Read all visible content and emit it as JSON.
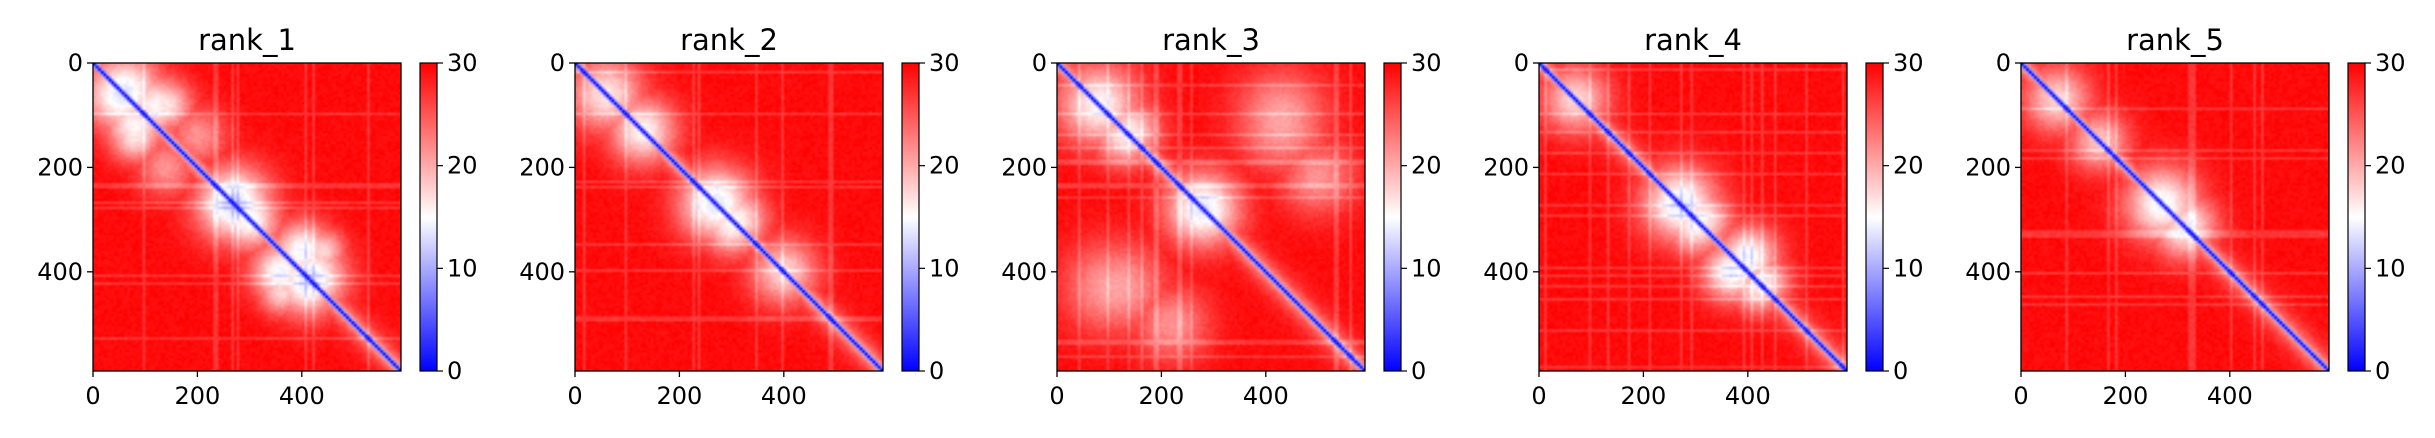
{
  "chart_data": [
    {
      "type": "heatmap",
      "title": "rank_1",
      "xlim": [
        0,
        590
      ],
      "ylim": [
        590,
        0
      ],
      "x_ticks": [
        0,
        200,
        400
      ],
      "y_ticks": [
        0,
        200,
        400
      ],
      "colorbar": {
        "range": [
          0,
          30
        ],
        "ticks": [
          0,
          10,
          20,
          30
        ]
      },
      "colormap": [
        "#0000ff",
        "#ffffff",
        "#ff0000"
      ],
      "blobs": [
        {
          "x": 60,
          "y": 55,
          "r": 50,
          "v": 14
        },
        {
          "x": 120,
          "y": 80,
          "r": 40,
          "v": 16
        },
        {
          "x": 80,
          "y": 140,
          "r": 35,
          "v": 17
        },
        {
          "x": 270,
          "y": 270,
          "r": 50,
          "v": 13
        },
        {
          "x": 300,
          "y": 300,
          "r": 40,
          "v": 15
        },
        {
          "x": 360,
          "y": 400,
          "r": 40,
          "v": 15
        },
        {
          "x": 420,
          "y": 410,
          "r": 45,
          "v": 14
        },
        {
          "x": 440,
          "y": 360,
          "r": 30,
          "v": 18
        },
        {
          "x": 200,
          "y": 140,
          "r": 40,
          "v": 22
        }
      ]
    },
    {
      "type": "heatmap",
      "title": "rank_2",
      "xlim": [
        0,
        590
      ],
      "ylim": [
        590,
        0
      ],
      "x_ticks": [
        0,
        200,
        400
      ],
      "y_ticks": [
        0,
        200,
        400
      ],
      "colorbar": {
        "range": [
          0,
          30
        ],
        "ticks": [
          0,
          10,
          20,
          30
        ]
      },
      "colormap": [
        "#0000ff",
        "#ffffff",
        "#ff0000"
      ],
      "blobs": [
        {
          "x": 60,
          "y": 60,
          "r": 50,
          "v": 17
        },
        {
          "x": 130,
          "y": 130,
          "r": 45,
          "v": 16
        },
        {
          "x": 270,
          "y": 270,
          "r": 50,
          "v": 14
        },
        {
          "x": 300,
          "y": 310,
          "r": 40,
          "v": 16
        },
        {
          "x": 400,
          "y": 400,
          "r": 45,
          "v": 18
        }
      ]
    },
    {
      "type": "heatmap",
      "title": "rank_3",
      "xlim": [
        0,
        590
      ],
      "ylim": [
        590,
        0
      ],
      "x_ticks": [
        0,
        200,
        400
      ],
      "y_ticks": [
        0,
        200,
        400
      ],
      "colorbar": {
        "range": [
          0,
          30
        ],
        "ticks": [
          0,
          10,
          20,
          30
        ]
      },
      "colormap": [
        "#0000ff",
        "#ffffff",
        "#ff0000"
      ],
      "blobs": [
        {
          "x": 80,
          "y": 80,
          "r": 55,
          "v": 16
        },
        {
          "x": 140,
          "y": 130,
          "r": 40,
          "v": 17
        },
        {
          "x": 280,
          "y": 280,
          "r": 50,
          "v": 14
        },
        {
          "x": 100,
          "y": 430,
          "r": 60,
          "v": 21
        },
        {
          "x": 430,
          "y": 120,
          "r": 60,
          "v": 21
        },
        {
          "x": 220,
          "y": 500,
          "r": 50,
          "v": 22
        },
        {
          "x": 500,
          "y": 220,
          "r": 50,
          "v": 22
        }
      ]
    },
    {
      "type": "heatmap",
      "title": "rank_4",
      "xlim": [
        0,
        590
      ],
      "ylim": [
        590,
        0
      ],
      "x_ticks": [
        0,
        200,
        400
      ],
      "y_ticks": [
        0,
        200,
        400
      ],
      "colorbar": {
        "range": [
          0,
          30
        ],
        "ticks": [
          0,
          10,
          20,
          30
        ]
      },
      "colormap": [
        "#0000ff",
        "#ffffff",
        "#ff0000"
      ],
      "blobs": [
        {
          "x": 70,
          "y": 70,
          "r": 45,
          "v": 18
        },
        {
          "x": 270,
          "y": 270,
          "r": 50,
          "v": 14
        },
        {
          "x": 300,
          "y": 310,
          "r": 40,
          "v": 16
        },
        {
          "x": 370,
          "y": 400,
          "r": 40,
          "v": 15
        },
        {
          "x": 430,
          "y": 420,
          "r": 35,
          "v": 17
        }
      ]
    },
    {
      "type": "heatmap",
      "title": "rank_5",
      "xlim": [
        0,
        590
      ],
      "ylim": [
        590,
        0
      ],
      "x_ticks": [
        0,
        200,
        400
      ],
      "y_ticks": [
        0,
        200,
        400
      ],
      "colorbar": {
        "range": [
          0,
          30
        ],
        "ticks": [
          0,
          10,
          20,
          30
        ]
      },
      "colormap": [
        "#0000ff",
        "#ffffff",
        "#ff0000"
      ],
      "blobs": [
        {
          "x": 70,
          "y": 70,
          "r": 45,
          "v": 18
        },
        {
          "x": 150,
          "y": 150,
          "r": 40,
          "v": 19
        },
        {
          "x": 270,
          "y": 270,
          "r": 50,
          "v": 15
        },
        {
          "x": 310,
          "y": 320,
          "r": 40,
          "v": 17
        }
      ]
    }
  ]
}
